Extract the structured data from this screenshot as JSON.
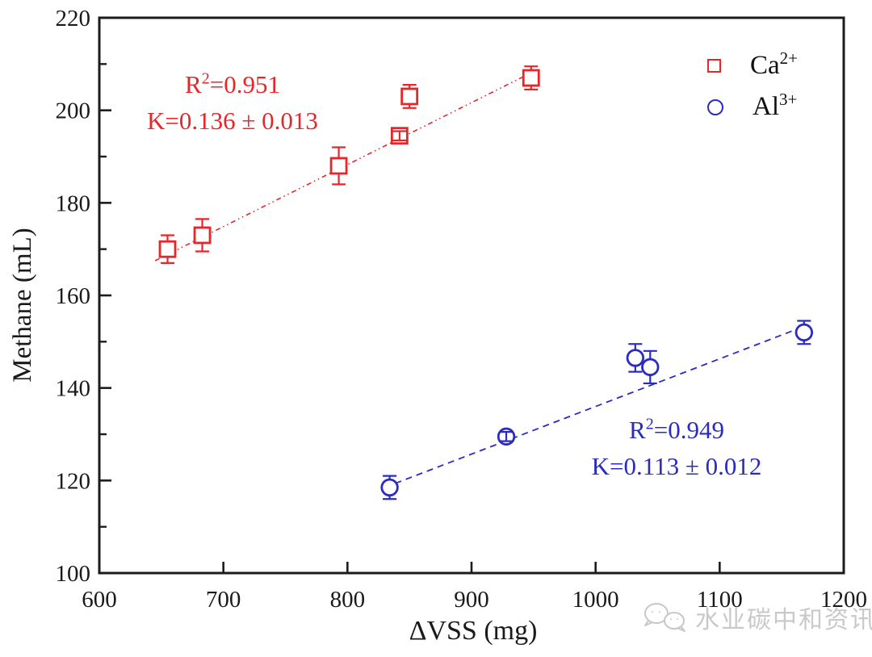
{
  "chart_data": {
    "type": "scatter",
    "title": "",
    "xlabel": "ΔVSS (mg)",
    "ylabel": "Methane (mL)",
    "xlim": [
      600,
      1200
    ],
    "ylim": [
      100,
      220
    ],
    "x_ticks": [
      600,
      700,
      800,
      900,
      1000,
      1100,
      1200
    ],
    "y_ticks": [
      100,
      120,
      140,
      160,
      180,
      200,
      220
    ],
    "y_minor_ticks": [
      110,
      130,
      150,
      170,
      190,
      210
    ],
    "grid": false,
    "legend_position": "top-right",
    "axis_color": "#1c1c1c",
    "series": [
      {
        "name": "Ca2+",
        "marker": "square",
        "color": "#e8262a",
        "points": [
          {
            "x": 655,
            "y": 170,
            "yerr": 3
          },
          {
            "x": 683,
            "y": 173,
            "yerr": 3.5
          },
          {
            "x": 793,
            "y": 188,
            "yerr": 4
          },
          {
            "x": 842,
            "y": 194.5,
            "yerr": 1
          },
          {
            "x": 850,
            "y": 203,
            "yerr": 2.5
          },
          {
            "x": 948,
            "y": 207,
            "yerr": 2.5
          }
        ],
        "fit_line": {
          "x1": 645,
          "y1": 167.5,
          "x2": 951,
          "y2": 208.5,
          "dash": "dash-dot",
          "r_squared": 0.951,
          "slope_k": "0.136 ± 0.013"
        }
      },
      {
        "name": "Al3+",
        "marker": "circle",
        "color": "#2b2bc4",
        "points": [
          {
            "x": 834,
            "y": 118.5,
            "yerr": 2.5
          },
          {
            "x": 928,
            "y": 129.5,
            "yerr": 1
          },
          {
            "x": 1032,
            "y": 146.5,
            "yerr": 3
          },
          {
            "x": 1044,
            "y": 144.5,
            "yerr": 3.5
          },
          {
            "x": 1168,
            "y": 152,
            "yerr": 2.5
          }
        ],
        "fit_line": {
          "x1": 830,
          "y1": 118.5,
          "x2": 1170,
          "y2": 153.5,
          "dash": "dashed",
          "r_squared": 0.949,
          "slope_k": "0.113 ± 0.012"
        }
      }
    ]
  },
  "annotations": {
    "ca": {
      "r2_base": "R",
      "r2_sup": "2",
      "r2_rest": "=0.951",
      "k_line": "K=0.136 ± 0.013"
    },
    "al": {
      "r2_base": "R",
      "r2_sup": "2",
      "r2_rest": "=0.949",
      "k_line": "K=0.113 ± 0.012"
    }
  },
  "legend": {
    "items": [
      {
        "base": "Ca",
        "sup": "2+",
        "marker": "square-icon"
      },
      {
        "base": "Al",
        "sup": "3+",
        "marker": "circle-icon"
      }
    ]
  },
  "watermark": {
    "icon": "wechat-logo-icon",
    "text": "水业碳中和资讯",
    "color": "#c7c7c7"
  }
}
